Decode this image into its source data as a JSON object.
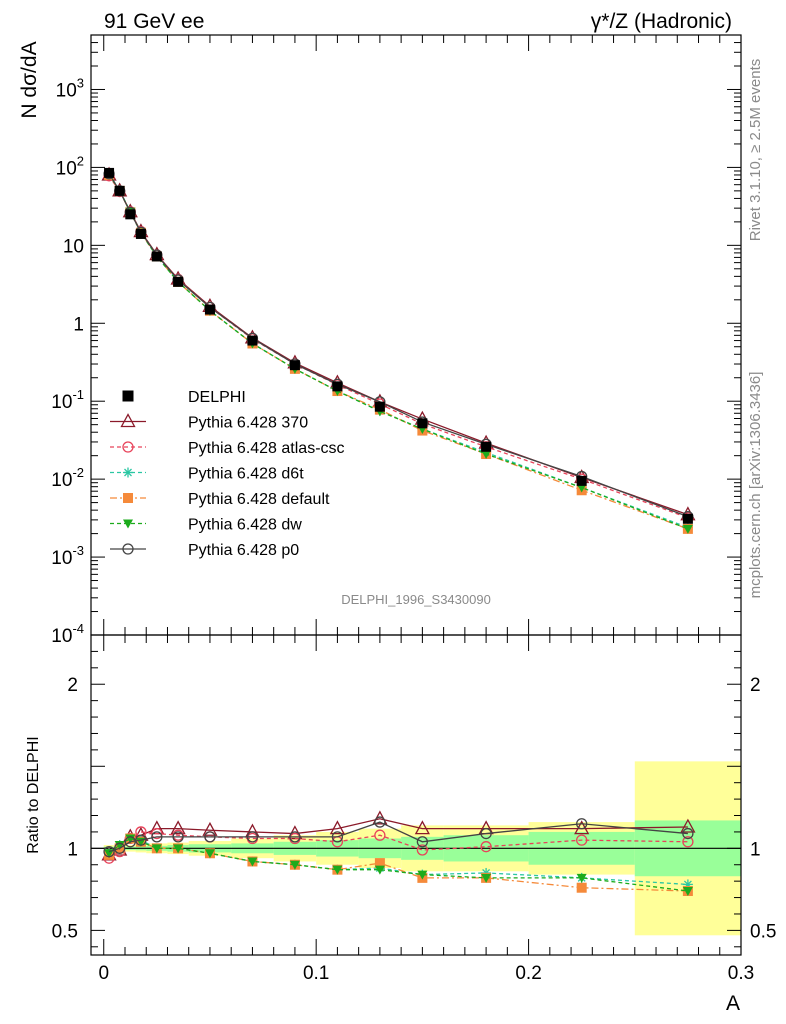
{
  "header": {
    "left_title": "91 GeV ee",
    "right_title": "γ*/Z (Hadronic)"
  },
  "side_labels": {
    "rivet": "Rivet 3.1.10, ≥ 2.5M events",
    "mcplots": "mcplots.cern.ch [arXiv:1306.3436]"
  },
  "analysis_id": "DELPHI_1996_S3430090",
  "chart_data": [
    {
      "type": "line",
      "panel": "main",
      "ylabel": "N dσ/dA",
      "yscale": "log",
      "ylim": [
        0.0001,
        5000
      ],
      "xlim": [
        -0.006,
        0.3
      ],
      "ytick_labels": [
        "10^-4",
        "10^-3",
        "10^-2",
        "10^-1",
        "1",
        "10",
        "10^2",
        "10^3"
      ],
      "x": [
        0.0025,
        0.0075,
        0.0125,
        0.0175,
        0.025,
        0.035,
        0.05,
        0.07,
        0.09,
        0.11,
        0.13,
        0.15,
        0.18,
        0.225,
        0.275
      ],
      "series": [
        {
          "name": "DELPHI",
          "color": "#000000",
          "marker": "square",
          "dash": "none",
          "values": [
            85,
            50,
            25,
            14,
            7.2,
            3.4,
            1.5,
            0.6,
            0.29,
            0.155,
            0.085,
            0.052,
            0.026,
            0.0095,
            0.0031
          ]
        },
        {
          "name": "Pythia 6.428 370",
          "color": "#8b1a2a",
          "marker": "triangle-open",
          "dash": "none",
          "values": [
            80,
            50,
            27,
            15,
            7.6,
            3.7,
            1.65,
            0.65,
            0.31,
            0.172,
            0.098,
            0.059,
            0.029,
            0.0105,
            0.0035
          ]
        },
        {
          "name": "Pythia 6.428 atlas-csc",
          "color": "#e8435a",
          "marker": "circle-open",
          "dash": "4,3",
          "values": [
            78,
            49,
            27,
            15,
            7.5,
            3.65,
            1.6,
            0.63,
            0.3,
            0.162,
            0.092,
            0.051,
            0.026,
            0.01,
            0.0032
          ]
        },
        {
          "name": "Pythia 6.428 d6t",
          "color": "#2bc7a3",
          "marker": "star",
          "dash": "4,3",
          "values": [
            82,
            51,
            27,
            14.5,
            7.2,
            3.4,
            1.45,
            0.55,
            0.26,
            0.135,
            0.075,
            0.044,
            0.022,
            0.0078,
            0.0024
          ]
        },
        {
          "name": "Pythia 6.428 default",
          "color": "#f58a3a",
          "marker": "square",
          "dash": "7,3,2,3",
          "values": [
            80,
            50,
            26.5,
            14.5,
            7.2,
            3.4,
            1.45,
            0.55,
            0.26,
            0.135,
            0.078,
            0.042,
            0.021,
            0.0072,
            0.0023
          ]
        },
        {
          "name": "Pythia 6.428 dw",
          "color": "#1cab1c",
          "marker": "triangle-down",
          "dash": "4,3",
          "values": [
            81,
            50,
            27,
            14.5,
            7.2,
            3.4,
            1.45,
            0.55,
            0.26,
            0.135,
            0.074,
            0.044,
            0.021,
            0.0078,
            0.0023
          ]
        },
        {
          "name": "Pythia 6.428 p0",
          "color": "#444444",
          "marker": "circle-open",
          "dash": "none",
          "values": [
            83,
            50,
            26.5,
            14.7,
            7.5,
            3.6,
            1.6,
            0.64,
            0.3,
            0.165,
            0.098,
            0.054,
            0.028,
            0.0108,
            0.0033
          ]
        }
      ],
      "legend_position": "left, lower half of main panel"
    },
    {
      "type": "line",
      "panel": "ratio",
      "ylabel": "Ratio to DELPHI",
      "xlabel": "A",
      "ylim": [
        0.35,
        2.3
      ],
      "xlim": [
        -0.006,
        0.3
      ],
      "ytick_labels": [
        "0.5",
        "1",
        "2"
      ],
      "xtick_labels": [
        "0",
        "0.1",
        "0.2",
        "0.3"
      ],
      "x": [
        0.0025,
        0.0075,
        0.0125,
        0.0175,
        0.025,
        0.035,
        0.05,
        0.07,
        0.09,
        0.11,
        0.13,
        0.15,
        0.18,
        0.225,
        0.275
      ],
      "x_edges": [
        0,
        0.005,
        0.01,
        0.015,
        0.02,
        0.03,
        0.04,
        0.06,
        0.08,
        0.1,
        0.12,
        0.14,
        0.16,
        0.2,
        0.25,
        0.3
      ],
      "stat_band": [
        0.01,
        0.01,
        0.01,
        0.012,
        0.015,
        0.02,
        0.025,
        0.03,
        0.04,
        0.05,
        0.06,
        0.07,
        0.08,
        0.1,
        0.17
      ],
      "total_band": [
        0.02,
        0.02,
        0.02,
        0.025,
        0.03,
        0.035,
        0.045,
        0.06,
        0.08,
        0.1,
        0.12,
        0.14,
        0.14,
        0.16,
        0.53
      ],
      "band_colors": {
        "stat": "#99ff99",
        "total": "#ffff99"
      },
      "series": [
        {
          "name": "Pythia 6.428 370",
          "color": "#8b1a2a",
          "marker": "triangle-open",
          "dash": "none",
          "values": [
            0.96,
            0.99,
            1.07,
            1.08,
            1.12,
            1.12,
            1.11,
            1.1,
            1.09,
            1.12,
            1.18,
            1.12,
            1.12,
            1.12,
            1.13
          ]
        },
        {
          "name": "Pythia 6.428 atlas-csc",
          "color": "#e8435a",
          "marker": "circle-open",
          "dash": "4,3",
          "values": [
            0.94,
            0.98,
            1.06,
            1.1,
            1.09,
            1.08,
            1.07,
            1.06,
            1.06,
            1.04,
            1.08,
            0.99,
            1.01,
            1.05,
            1.04
          ]
        },
        {
          "name": "Pythia 6.428 d6t",
          "color": "#2bc7a3",
          "marker": "star",
          "dash": "4,3",
          "values": [
            0.97,
            1.02,
            1.06,
            1.05,
            1.0,
            1.0,
            0.97,
            0.92,
            0.9,
            0.87,
            0.88,
            0.84,
            0.85,
            0.82,
            0.78
          ]
        },
        {
          "name": "Pythia 6.428 default",
          "color": "#f58a3a",
          "marker": "square",
          "dash": "7,3,2,3",
          "values": [
            0.96,
            1.0,
            1.06,
            1.04,
            1.0,
            1.0,
            0.97,
            0.92,
            0.9,
            0.87,
            0.91,
            0.82,
            0.82,
            0.76,
            0.74
          ]
        },
        {
          "name": "Pythia 6.428 dw",
          "color": "#1cab1c",
          "marker": "triangle-down",
          "dash": "4,3",
          "values": [
            0.97,
            1.02,
            1.06,
            1.04,
            1.0,
            1.0,
            0.97,
            0.92,
            0.9,
            0.87,
            0.87,
            0.84,
            0.82,
            0.82,
            0.74
          ]
        },
        {
          "name": "Pythia 6.428 p0",
          "color": "#444444",
          "marker": "circle-open",
          "dash": "none",
          "values": [
            0.98,
            1.0,
            1.04,
            1.05,
            1.07,
            1.07,
            1.07,
            1.07,
            1.07,
            1.07,
            1.16,
            1.04,
            1.09,
            1.15,
            1.09
          ]
        }
      ]
    }
  ]
}
